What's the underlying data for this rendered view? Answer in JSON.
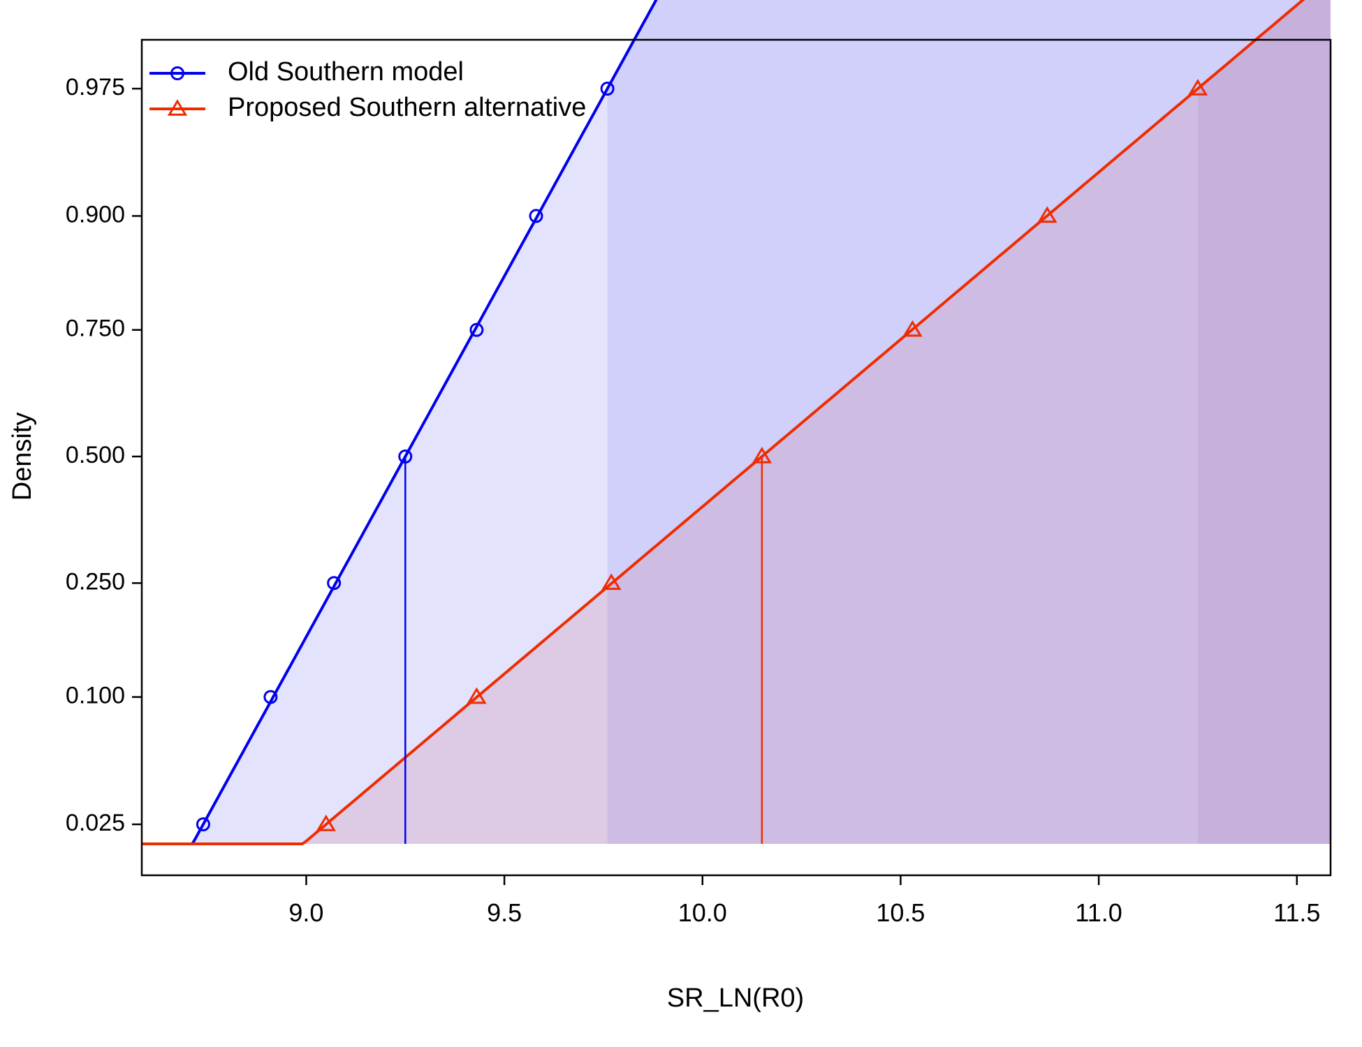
{
  "chart_data": {
    "type": "line",
    "xlabel": "SR_LN(R0)",
    "ylabel": "Density",
    "xlim": [
      8.585,
      11.585
    ],
    "x_ticks": [
      "9.0",
      "9.5",
      "10.0",
      "10.5",
      "11.0",
      "11.5"
    ],
    "y_ticks": [
      "0.025",
      "0.100",
      "0.250",
      "0.500",
      "0.750",
      "0.900",
      "0.975"
    ],
    "y_scale": "normal-quantile (probit), ticks at cumulative probabilities",
    "legend_position": "top-left",
    "series": [
      {
        "name": "Old Southern model",
        "color": "#0000ee",
        "marker": "circle",
        "median": 9.25,
        "interval_95": [
          8.74,
          9.76
        ],
        "quantile_points": [
          {
            "p": 0.025,
            "x": 8.74
          },
          {
            "p": 0.1,
            "x": 8.91
          },
          {
            "p": 0.25,
            "x": 9.07
          },
          {
            "p": 0.5,
            "x": 9.25
          },
          {
            "p": 0.75,
            "x": 9.43
          },
          {
            "p": 0.9,
            "x": 9.58
          },
          {
            "p": 0.975,
            "x": 9.76
          }
        ]
      },
      {
        "name": "Proposed Southern alternative",
        "color": "#ee2c00",
        "marker": "triangle",
        "median": 10.15,
        "interval_95": [
          9.05,
          11.25
        ],
        "quantile_points": [
          {
            "p": 0.025,
            "x": 9.05
          },
          {
            "p": 0.1,
            "x": 9.43
          },
          {
            "p": 0.25,
            "x": 9.77
          },
          {
            "p": 0.5,
            "x": 10.15
          },
          {
            "p": 0.75,
            "x": 10.53
          },
          {
            "p": 0.9,
            "x": 10.87
          },
          {
            "p": 0.975,
            "x": 11.25
          }
        ]
      }
    ]
  }
}
